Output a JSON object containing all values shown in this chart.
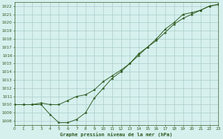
{
  "title": "Graphe pression niveau de la mer (hPa)",
  "bg_color": "#d6f0ee",
  "grid_color": "#a8ccc8",
  "line_color": "#2d5a1e",
  "xlim": [
    0,
    23
  ],
  "ylim": [
    1007.5,
    1022.5
  ],
  "xticks": [
    0,
    1,
    2,
    3,
    4,
    5,
    6,
    7,
    8,
    9,
    10,
    11,
    12,
    13,
    14,
    15,
    16,
    17,
    18,
    19,
    20,
    21,
    22,
    23
  ],
  "yticks": [
    1008,
    1009,
    1010,
    1011,
    1012,
    1013,
    1014,
    1015,
    1016,
    1017,
    1018,
    1019,
    1020,
    1021,
    1022
  ],
  "line1_x": [
    0,
    1,
    2,
    3,
    4,
    5,
    6,
    7,
    8,
    9,
    10,
    11,
    12,
    13,
    14,
    15,
    16,
    17,
    18,
    19,
    20,
    21,
    22,
    23
  ],
  "line1_y": [
    1010,
    1010,
    1010,
    1010,
    1008.8,
    1007.8,
    1007.8,
    1008.2,
    1009.0,
    1010.8,
    1012.0,
    1013.2,
    1014.0,
    1015.0,
    1016.2,
    1017.0,
    1018.0,
    1019.2,
    1020.0,
    1021.0,
    1021.2,
    1021.5,
    1022.0,
    1022.2
  ],
  "line2_x": [
    0,
    1,
    2,
    3,
    4,
    5,
    6,
    7,
    8,
    9,
    10,
    11,
    12,
    13,
    14,
    15,
    16,
    17,
    18,
    19,
    20,
    21,
    22,
    23
  ],
  "line2_y": [
    1010,
    1010,
    1010,
    1010.2,
    1010.0,
    1010.0,
    1010.5,
    1011.0,
    1011.2,
    1011.8,
    1012.8,
    1013.5,
    1014.2,
    1015.0,
    1016.0,
    1017.0,
    1017.8,
    1018.8,
    1019.8,
    1020.5,
    1021.0,
    1021.5,
    1022.0,
    1022.2
  ]
}
